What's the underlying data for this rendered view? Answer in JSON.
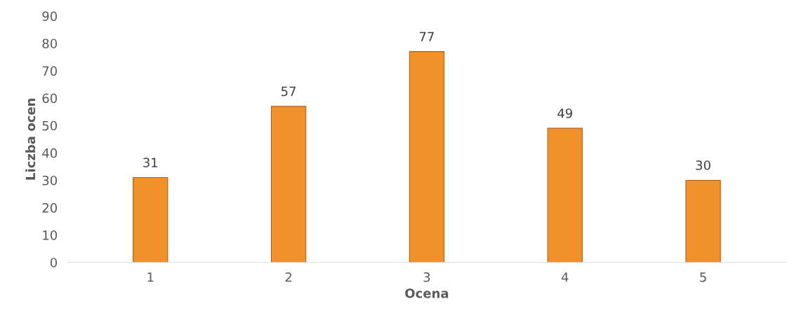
{
  "chart_data": {
    "type": "bar",
    "xlabel": "Ocena",
    "ylabel": "Liczba ocen",
    "categories": [
      "1",
      "2",
      "3",
      "4",
      "5"
    ],
    "values": [
      31,
      57,
      77,
      49,
      30
    ],
    "color": "#f0912c",
    "ylim": [
      0,
      90
    ],
    "yticks": [
      0,
      10,
      20,
      30,
      40,
      50,
      60,
      70,
      80,
      90
    ],
    "grid": false,
    "data_labels": true
  }
}
